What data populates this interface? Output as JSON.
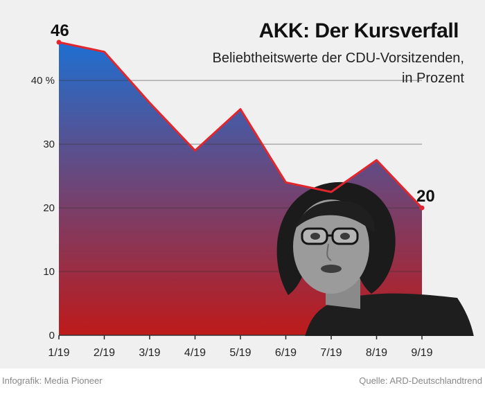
{
  "chart_data": {
    "type": "area",
    "title": "AKK: Der Kursverfall",
    "subtitle": [
      "Beliebtheitswerte der CDU-Vorsitzenden,",
      "in Prozent"
    ],
    "x": [
      "1/19",
      "2/19",
      "3/19",
      "4/19",
      "5/19",
      "6/19",
      "7/19",
      "8/19",
      "9/19"
    ],
    "series": [
      {
        "values": [
          46,
          44.5,
          36.5,
          29,
          35.5,
          24,
          22.5,
          27.5,
          20
        ]
      }
    ],
    "yticks": [
      {
        "value": 0,
        "label": "0"
      },
      {
        "value": 10,
        "label": "10"
      },
      {
        "value": 20,
        "label": "20"
      },
      {
        "value": 30,
        "label": "30"
      },
      {
        "value": 40,
        "label": "40 %"
      }
    ],
    "ylim": [
      0,
      46
    ],
    "grid": true,
    "annotations": [
      {
        "x": "1/19",
        "label": "46"
      },
      {
        "x": "9/19",
        "label": "20"
      }
    ],
    "colors": {
      "line": "#e1262d",
      "fill_top": "#1f6fd1",
      "fill_bottom": "#be1a1a",
      "grid": "#333333",
      "photo_silhouette": "#1b1b1b"
    }
  },
  "footer": {
    "credit": "Infografik: Media Pioneer",
    "source": "Quelle: ARD-Deutschlandtrend"
  },
  "photo": {
    "icon": "portrait-photo-icon"
  }
}
